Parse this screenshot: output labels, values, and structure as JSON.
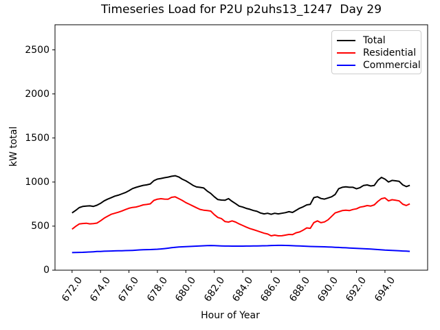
{
  "figure": {
    "title": "Timeseries Load for P2U p2uhs13_1247  Day 29",
    "xlabel": "Hour of Year",
    "ylabel": "kW total"
  },
  "chart_data": {
    "type": "line",
    "title": "Timeseries Load for P2U p2uhs13_1247  Day 29",
    "xlabel": "Hour of Year",
    "ylabel": "kW total",
    "grid": false,
    "background": "#ffffff",
    "xlim": [
      670.8,
      697.0
    ],
    "ylim": [
      0,
      2785
    ],
    "xticks": {
      "values": [
        672,
        674,
        676,
        678,
        680,
        682,
        684,
        686,
        688,
        690,
        692,
        694
      ],
      "labels": [
        "672.0",
        "674.0",
        "676.0",
        "678.0",
        "680.0",
        "682.0",
        "684.0",
        "686.0",
        "688.0",
        "690.0",
        "692.0",
        "694.0"
      ]
    },
    "yticks": {
      "values": [
        0,
        500,
        1000,
        1500,
        2000,
        2500
      ],
      "labels": [
        "0",
        "500",
        "1000",
        "1500",
        "2000",
        "2500"
      ]
    },
    "legend": {
      "position": "upper right",
      "border_color": "#cccccc"
    },
    "x": [
      672.0,
      672.25,
      672.5,
      672.75,
      673.0,
      673.25,
      673.5,
      673.75,
      674.0,
      674.25,
      674.5,
      674.75,
      675.0,
      675.25,
      675.5,
      675.75,
      676.0,
      676.25,
      676.5,
      676.75,
      677.0,
      677.25,
      677.5,
      677.75,
      678.0,
      678.25,
      678.5,
      678.75,
      679.0,
      679.25,
      679.5,
      679.75,
      680.0,
      680.25,
      680.5,
      680.75,
      681.0,
      681.25,
      681.5,
      681.75,
      682.0,
      682.25,
      682.5,
      682.75,
      683.0,
      683.25,
      683.5,
      683.75,
      684.0,
      684.25,
      684.5,
      684.75,
      685.0,
      685.25,
      685.5,
      685.75,
      686.0,
      686.25,
      686.5,
      686.75,
      687.0,
      687.25,
      687.5,
      687.75,
      688.0,
      688.25,
      688.5,
      688.75,
      689.0,
      689.25,
      689.5,
      689.75,
      690.0,
      690.25,
      690.5,
      690.75,
      691.0,
      691.25,
      691.5,
      691.75,
      692.0,
      692.25,
      692.5,
      692.75,
      693.0,
      693.25,
      693.5,
      693.75,
      694.0,
      694.25,
      694.5,
      694.75,
      695.0,
      695.25,
      695.5,
      695.75
    ],
    "series": [
      {
        "name": "Total",
        "color": "#000000",
        "values": [
          650,
          678,
          710,
          723,
          728,
          730,
          724,
          737,
          758,
          786,
          806,
          822,
          840,
          851,
          866,
          881,
          902,
          926,
          940,
          952,
          963,
          968,
          978,
          1016,
          1034,
          1041,
          1049,
          1056,
          1066,
          1072,
          1058,
          1033,
          1014,
          989,
          963,
          945,
          940,
          933,
          898,
          871,
          833,
          801,
          796,
          793,
          812,
          781,
          755,
          727,
          716,
          701,
          691,
          677,
          668,
          649,
          639,
          646,
          634,
          646,
          639,
          646,
          653,
          664,
          655,
          679,
          703,
          719,
          741,
          747,
          823,
          833,
          814,
          807,
          820,
          833,
          859,
          925,
          941,
          946,
          941,
          941,
          924,
          937,
          962,
          967,
          956,
          962,
          1019,
          1053,
          1034,
          1001,
          1019,
          1014,
          1008,
          968,
          949,
          963
        ]
      },
      {
        "name": "Residential",
        "color": "#ff0000",
        "values": [
          465,
          497,
          524,
          530,
          533,
          526,
          529,
          534,
          560,
          590,
          612,
          634,
          646,
          658,
          672,
          688,
          703,
          712,
          717,
          728,
          741,
          746,
          753,
          792,
          806,
          811,
          807,
          806,
          827,
          832,
          812,
          792,
          767,
          748,
          728,
          708,
          690,
          681,
          676,
          671,
          630,
          598,
          586,
          552,
          546,
          559,
          546,
          525,
          507,
          489,
          473,
          460,
          447,
          434,
          420,
          410,
          390,
          398,
          390,
          391,
          398,
          406,
          403,
          424,
          434,
          455,
          480,
          475,
          540,
          559,
          539,
          548,
          572,
          611,
          650,
          663,
          676,
          681,
          676,
          689,
          697,
          715,
          722,
          733,
          728,
          741,
          780,
          811,
          820,
          786,
          800,
          793,
          786,
          749,
          734,
          753
        ]
      },
      {
        "name": "Commercial",
        "color": "#0000ff",
        "values": [
          200,
          201,
          202,
          203,
          205,
          207,
          209,
          212,
          213,
          215,
          216,
          218,
          219,
          220,
          221,
          222,
          223,
          225,
          227,
          230,
          232,
          233,
          234,
          236,
          238,
          241,
          245,
          250,
          255,
          259,
          263,
          265,
          267,
          269,
          271,
          273,
          275,
          277,
          279,
          280,
          279,
          277,
          275,
          274,
          274,
          273,
          273,
          273,
          273,
          274,
          274,
          275,
          275,
          276,
          277,
          278,
          280,
          281,
          282,
          282,
          281,
          280,
          278,
          276,
          275,
          273,
          271,
          269,
          268,
          267,
          266,
          265,
          264,
          262,
          260,
          258,
          256,
          254,
          252,
          250,
          248,
          246,
          244,
          242,
          240,
          237,
          234,
          231,
          228,
          226,
          224,
          222,
          220,
          218,
          216,
          214
        ]
      }
    ]
  }
}
